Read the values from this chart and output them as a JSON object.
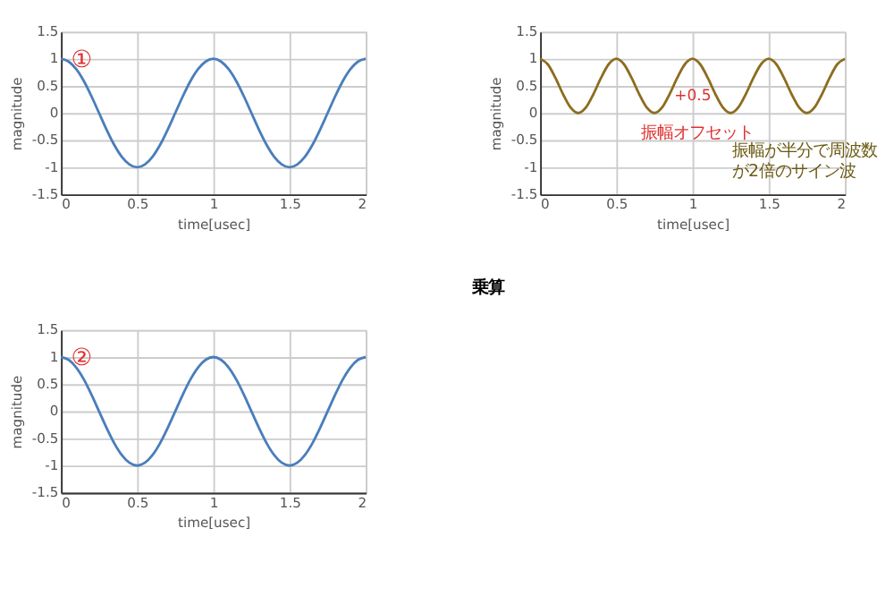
{
  "chart_data": [
    {
      "type": "line",
      "xlabel": "time[usec]",
      "ylabel": "magnitude",
      "annotations": [
        "①"
      ],
      "x": [
        0,
        0.05,
        0.1,
        0.15,
        0.2,
        0.25,
        0.3,
        0.35,
        0.4,
        0.45,
        0.5,
        0.55,
        0.6,
        0.65,
        0.7,
        0.75,
        0.8,
        0.85,
        0.9,
        0.95,
        1,
        1.05,
        1.1,
        1.15,
        1.2,
        1.25,
        1.3,
        1.35,
        1.4,
        1.45,
        1.5,
        1.55,
        1.6,
        1.65,
        1.7,
        1.75,
        1.8,
        1.85,
        1.9,
        1.95,
        2
      ],
      "series": [
        {
          "color": "#4a7ebb",
          "values": [
            1,
            0.95,
            0.81,
            0.59,
            0.31,
            0,
            -0.31,
            -0.59,
            -0.81,
            -0.95,
            -1,
            -0.95,
            -0.81,
            -0.59,
            -0.31,
            0,
            0.31,
            0.59,
            0.81,
            0.95,
            1,
            0.95,
            0.81,
            0.59,
            0.31,
            0,
            -0.31,
            -0.59,
            -0.81,
            -0.95,
            -1,
            -0.95,
            -0.81,
            -0.59,
            -0.31,
            0,
            0.31,
            0.59,
            0.81,
            0.95,
            1
          ]
        }
      ],
      "xlim": [
        0,
        2
      ],
      "xticks": [
        0,
        0.5,
        1,
        1.5,
        2
      ],
      "ylim": [
        -1.5,
        1.5
      ],
      "yticks": [
        -1.5,
        -1,
        -0.5,
        0,
        0.5,
        1,
        1.5
      ],
      "grid": true
    },
    {
      "type": "line",
      "xlabel": "time[usec]",
      "ylabel": "magnitude",
      "annotations": [
        "振幅オフセット",
        "+0.5",
        "振幅が半分で周波数が2倍のサイン波",
        "乗算"
      ],
      "x": [
        0,
        0.05,
        0.1,
        0.15,
        0.2,
        0.25,
        0.3,
        0.35,
        0.4,
        0.45,
        0.5,
        0.55,
        0.6,
        0.65,
        0.7,
        0.75,
        0.8,
        0.85,
        0.9,
        0.95,
        1,
        1.05,
        1.1,
        1.15,
        1.2,
        1.25,
        1.3,
        1.35,
        1.4,
        1.45,
        1.5,
        1.55,
        1.6,
        1.65,
        1.7,
        1.75,
        1.8,
        1.85,
        1.9,
        1.95,
        2
      ],
      "series": [
        {
          "color": "#8c6d1f",
          "values": [
            1,
            0.9,
            0.65,
            0.35,
            0.1,
            0,
            0.1,
            0.35,
            0.65,
            0.9,
            1,
            0.9,
            0.65,
            0.35,
            0.1,
            0,
            0.1,
            0.35,
            0.65,
            0.9,
            1,
            0.9,
            0.65,
            0.35,
            0.1,
            0,
            0.1,
            0.35,
            0.65,
            0.9,
            1,
            0.9,
            0.65,
            0.35,
            0.1,
            0,
            0.1,
            0.35,
            0.65,
            0.9,
            1
          ]
        }
      ],
      "xlim": [
        0,
        2
      ],
      "xticks": [
        0,
        0.5,
        1,
        1.5,
        2
      ],
      "ylim": [
        -1.5,
        1.5
      ],
      "yticks": [
        -1.5,
        -1,
        -0.5,
        0,
        0.5,
        1,
        1.5
      ],
      "grid": true
    },
    {
      "type": "line",
      "xlabel": "time[usec]",
      "ylabel": "magnitude",
      "annotations": [
        "②"
      ],
      "x": [
        0,
        0.05,
        0.1,
        0.15,
        0.2,
        0.25,
        0.3,
        0.35,
        0.4,
        0.45,
        0.5,
        0.55,
        0.6,
        0.65,
        0.7,
        0.75,
        0.8,
        0.85,
        0.9,
        0.95,
        1,
        1.05,
        1.1,
        1.15,
        1.2,
        1.25,
        1.3,
        1.35,
        1.4,
        1.45,
        1.5,
        1.55,
        1.6,
        1.65,
        1.7,
        1.75,
        1.8,
        1.85,
        1.9,
        1.95,
        2
      ],
      "series": [
        {
          "color": "#4a7ebb",
          "values": [
            1,
            0.95,
            0.81,
            0.59,
            0.31,
            0,
            -0.31,
            -0.59,
            -0.81,
            -0.95,
            -1,
            -0.95,
            -0.81,
            -0.59,
            -0.31,
            0,
            0.31,
            0.59,
            0.81,
            0.95,
            1,
            0.95,
            0.81,
            0.59,
            0.31,
            0,
            -0.31,
            -0.59,
            -0.81,
            -0.95,
            -1,
            -0.95,
            -0.81,
            -0.59,
            -0.31,
            0,
            0.31,
            0.59,
            0.81,
            0.95,
            1
          ]
        }
      ],
      "xlim": [
        0,
        2
      ],
      "xticks": [
        0,
        0.5,
        1,
        1.5,
        2
      ],
      "ylim": [
        -1.5,
        1.5
      ],
      "yticks": [
        -1.5,
        -1,
        -0.5,
        0,
        0.5,
        1,
        1.5
      ],
      "grid": true
    }
  ]
}
